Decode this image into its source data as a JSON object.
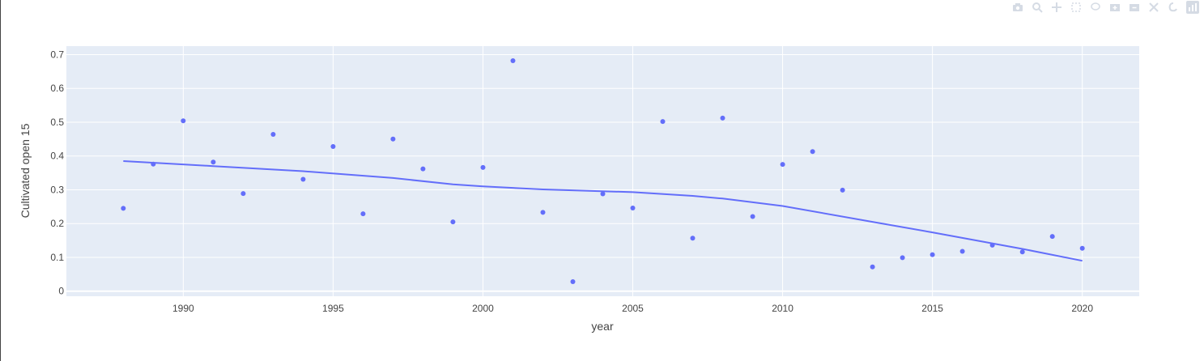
{
  "chart_data": {
    "type": "scatter",
    "xlabel": "year",
    "ylabel": "Cultivated open 15",
    "xlim": [
      1986.1,
      2021.9
    ],
    "ylim": [
      -0.015,
      0.725
    ],
    "xticks": [
      1990,
      1995,
      2000,
      2005,
      2010,
      2015,
      2020
    ],
    "yticks": [
      0,
      0.1,
      0.2,
      0.3,
      0.4,
      0.5,
      0.6,
      0.7
    ],
    "ytick_labels": [
      "0",
      "0.1",
      "0.2",
      "0.3",
      "0.4",
      "0.5",
      "0.6",
      "0.7"
    ],
    "series": [
      {
        "name": "points",
        "mode": "markers",
        "color": "#636efa",
        "x": [
          1988,
          1989,
          1990,
          1991,
          1992,
          1993,
          1994,
          1995,
          1996,
          1997,
          1998,
          1999,
          2000,
          2001,
          2002,
          2003,
          2004,
          2005,
          2006,
          2007,
          2008,
          2009,
          2010,
          2011,
          2012,
          2013,
          2014,
          2015,
          2016,
          2017,
          2018,
          2019,
          2020
        ],
        "y": [
          0.245,
          0.376,
          0.504,
          0.382,
          0.289,
          0.464,
          0.331,
          0.428,
          0.229,
          0.45,
          0.362,
          0.205,
          0.366,
          0.682,
          0.233,
          0.028,
          0.288,
          0.246,
          0.502,
          0.157,
          0.512,
          0.221,
          0.375,
          0.413,
          0.299,
          0.072,
          0.099,
          0.108,
          0.118,
          0.136,
          0.116,
          0.162,
          0.127
        ]
      },
      {
        "name": "trend",
        "mode": "lines",
        "color": "#636efa",
        "x": [
          1988,
          1991,
          1994,
          1997,
          1999,
          2000,
          2002,
          2005,
          2007,
          2008,
          2010,
          2013,
          2015,
          2018,
          2020
        ],
        "y": [
          0.385,
          0.37,
          0.355,
          0.335,
          0.316,
          0.31,
          0.301,
          0.293,
          0.282,
          0.274,
          0.252,
          0.205,
          0.174,
          0.125,
          0.09
        ]
      }
    ]
  },
  "modebar": {
    "icons": [
      "camera-icon",
      "zoom-icon",
      "pan-icon",
      "box-select-icon",
      "lasso-icon",
      "zoom-in-icon",
      "zoom-out-icon",
      "autoscale-icon",
      "reset-axes-icon",
      "plotly-logo-icon"
    ]
  }
}
